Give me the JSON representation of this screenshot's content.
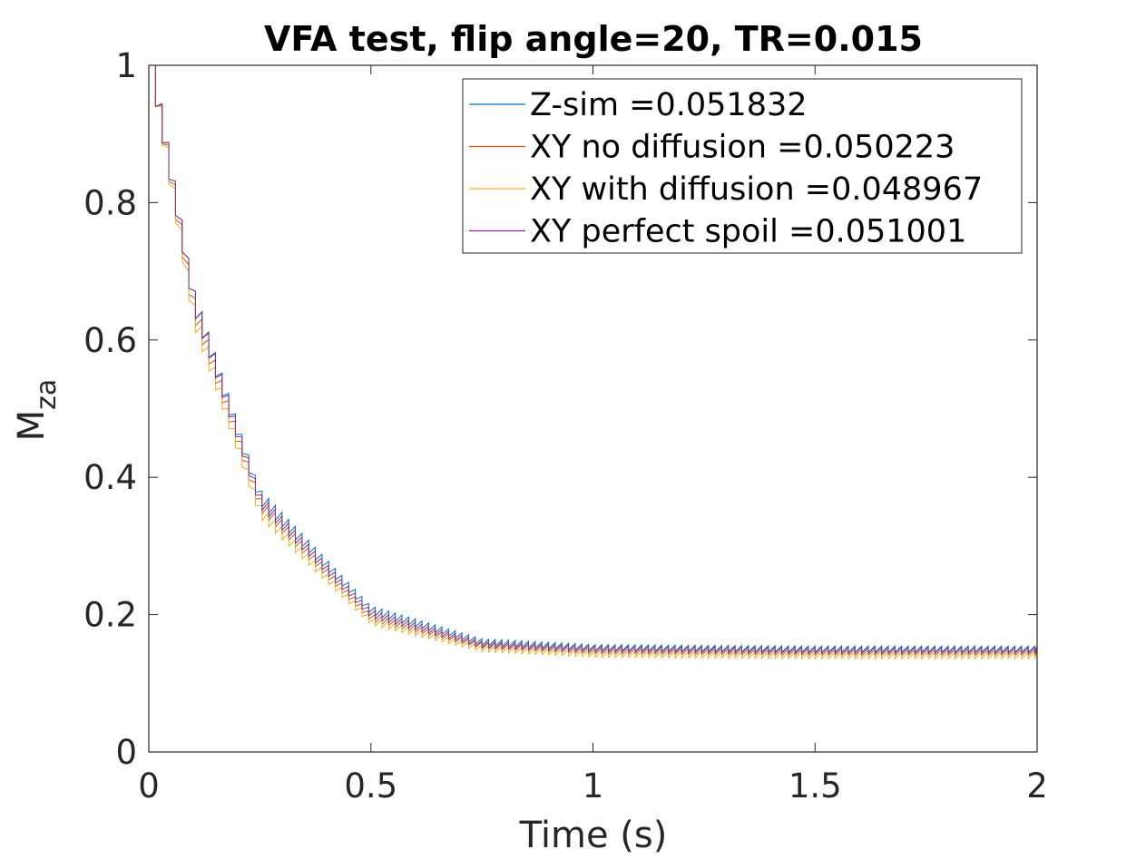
{
  "chart_data": {
    "type": "line",
    "title": "VFA test, flip angle=20, TR=0.015",
    "xlabel": "Time (s)",
    "ylabel_main": "M",
    "ylabel_sub": "za",
    "xlim": [
      0,
      2
    ],
    "ylim": [
      0,
      1
    ],
    "xticks": [
      0,
      0.5,
      1,
      1.5,
      2
    ],
    "xtick_labels": [
      "0",
      "0.5",
      "1",
      "1.5",
      "2"
    ],
    "yticks": [
      0,
      0.2,
      0.4,
      0.6,
      0.8,
      1
    ],
    "ytick_labels": [
      "0",
      "0.2",
      "0.4",
      "0.6",
      "0.8",
      "1"
    ],
    "grid": false,
    "legend_position": "top-right",
    "TR": 0.015,
    "series": [
      {
        "name": "Z-sim =0.051832",
        "color": "#0072BD",
        "post_pulse_approx": {
          "t": [
            0.015,
            0.1,
            0.25,
            0.5,
            0.75,
            1.0,
            1.5,
            2.0
          ],
          "v": [
            0.94,
            0.64,
            0.36,
            0.2,
            0.155,
            0.147,
            0.145,
            0.145
          ]
        }
      },
      {
        "name": "XY no diffusion =0.050223",
        "color": "#D95319",
        "post_pulse_approx": {
          "t": [
            0.015,
            0.1,
            0.25,
            0.5,
            0.75,
            1.0,
            1.5,
            2.0
          ],
          "v": [
            0.94,
            0.63,
            0.35,
            0.19,
            0.15,
            0.142,
            0.14,
            0.14
          ]
        }
      },
      {
        "name": "XY with diffusion =0.048967",
        "color": "#EDB120",
        "post_pulse_approx": {
          "t": [
            0.015,
            0.1,
            0.25,
            0.5,
            0.75,
            1.0,
            1.5,
            2.0
          ],
          "v": [
            0.94,
            0.62,
            0.34,
            0.185,
            0.146,
            0.138,
            0.136,
            0.136
          ]
        }
      },
      {
        "name": "XY perfect spoil =0.051001",
        "color": "#7E2F8E",
        "post_pulse_approx": {
          "t": [
            0.015,
            0.1,
            0.25,
            0.5,
            0.75,
            1.0,
            1.5,
            2.0
          ],
          "v": [
            0.94,
            0.64,
            0.355,
            0.195,
            0.152,
            0.145,
            0.143,
            0.143
          ]
        }
      }
    ]
  }
}
